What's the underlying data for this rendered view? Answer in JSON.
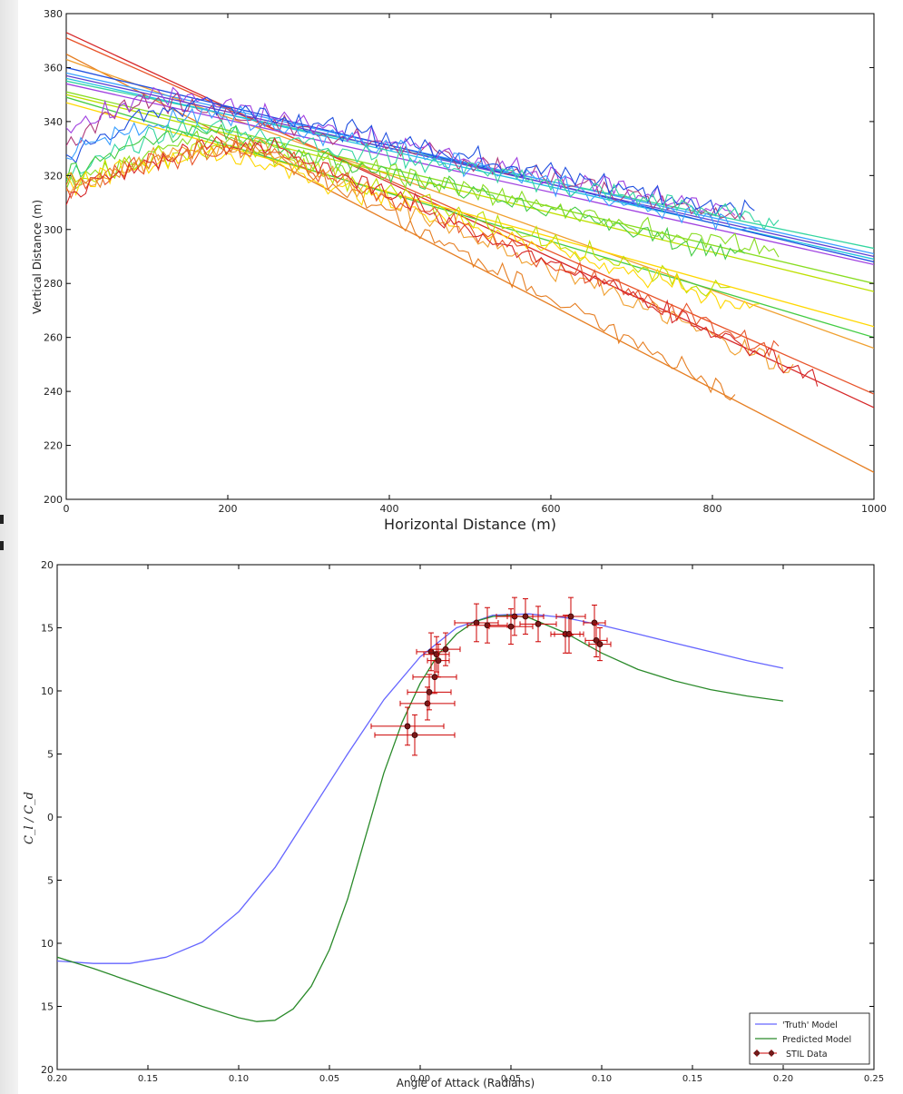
{
  "chart_data": [
    {
      "type": "line",
      "xlabel": "Horizontal Distance (m)",
      "ylabel": "Vertical Distance (m)",
      "xlim": [
        0,
        1000
      ],
      "ylim": [
        200,
        380
      ],
      "xticks": [
        "0",
        "200",
        "400",
        "600",
        "800",
        "1000"
      ],
      "yticks": [
        "200",
        "220",
        "240",
        "260",
        "280",
        "300",
        "320",
        "340",
        "360",
        "380"
      ],
      "fit_lines": [
        {
          "color": "#d62728",
          "y0": 373,
          "y1000": 234
        },
        {
          "color": "#e8542a",
          "y0": 371,
          "y1000": 239
        },
        {
          "color": "#e67e22",
          "y0": 365,
          "y1000": 210
        },
        {
          "color": "#f0a030",
          "y0": 363,
          "y1000": 256
        },
        {
          "color": "#ffd700",
          "y0": 347,
          "y1000": 264
        },
        {
          "color": "#bfe000",
          "y0": 350,
          "y1000": 277
        },
        {
          "color": "#88dd22",
          "y0": 351,
          "y1000": 280
        },
        {
          "color": "#44cc44",
          "y0": 349,
          "y1000": 260
        },
        {
          "color": "#33d6a0",
          "y0": 355,
          "y1000": 293
        },
        {
          "color": "#20c0e0",
          "y0": 356,
          "y1000": 289
        },
        {
          "color": "#3aa0ff",
          "y0": 358,
          "y1000": 291
        },
        {
          "color": "#2050e0",
          "y0": 360,
          "y1000": 288
        },
        {
          "color": "#6040d0",
          "y0": 357,
          "y1000": 290
        },
        {
          "color": "#a040e0",
          "y0": 354,
          "y1000": 287
        }
      ],
      "noisy_tracks": [
        {
          "color": "#b03a7a",
          "start": [
            0,
            331
          ],
          "peak": [
            110,
            348
          ],
          "end": [
            840,
            305
          ]
        },
        {
          "color": "#a040e0",
          "start": [
            0,
            335
          ],
          "peak": [
            120,
            350
          ],
          "end": [
            830,
            306
          ]
        },
        {
          "color": "#2050e0",
          "start": [
            0,
            326
          ],
          "peak": [
            180,
            347
          ],
          "end": [
            850,
            306
          ]
        },
        {
          "color": "#3aa0ff",
          "start": [
            0,
            328
          ],
          "peak": [
            200,
            343
          ],
          "end": [
            860,
            300
          ]
        },
        {
          "color": "#33d6a0",
          "start": [
            0,
            318
          ],
          "peak": [
            180,
            338
          ],
          "end": [
            880,
            303
          ]
        },
        {
          "color": "#44cc44",
          "start": [
            0,
            320
          ],
          "peak": [
            170,
            337
          ],
          "end": [
            840,
            290
          ]
        },
        {
          "color": "#88dd22",
          "start": [
            0,
            315
          ],
          "peak": [
            200,
            333
          ],
          "end": [
            880,
            291
          ]
        },
        {
          "color": "#bfe000",
          "start": [
            0,
            318
          ],
          "peak": [
            220,
            330
          ],
          "end": [
            820,
            276
          ]
        },
        {
          "color": "#ffd700",
          "start": [
            0,
            316
          ],
          "peak": [
            200,
            328
          ],
          "end": [
            860,
            270
          ]
        },
        {
          "color": "#f0a030",
          "start": [
            0,
            314
          ],
          "peak": [
            230,
            332
          ],
          "end": [
            900,
            248
          ]
        },
        {
          "color": "#e8542a",
          "start": [
            0,
            315
          ],
          "peak": [
            240,
            330
          ],
          "end": [
            880,
            255
          ]
        },
        {
          "color": "#d62728",
          "start": [
            0,
            313
          ],
          "peak": [
            250,
            332
          ],
          "end": [
            930,
            246
          ]
        },
        {
          "color": "#e67e22",
          "start": [
            0,
            316
          ],
          "peak": [
            240,
            331
          ],
          "end": [
            830,
            238
          ]
        }
      ]
    },
    {
      "type": "line",
      "xlabel": "Angle of Attack (Radians)",
      "ylabel": "C_l / C_d",
      "xlim": [
        -0.2,
        0.25
      ],
      "ylim": [
        -20,
        20
      ],
      "xticks": [
        "0.20",
        "0.15",
        "0.10",
        "0.05",
        "0.00",
        "0.05",
        "0.10",
        "0.15",
        "0.20",
        "0.25"
      ],
      "yticks": [
        "20",
        "15",
        "10",
        "5",
        "0",
        "5",
        "10",
        "15",
        "20"
      ],
      "series": [
        {
          "name": "'Truth' Model",
          "color": "#6666ff",
          "x": [
            -0.2,
            -0.18,
            -0.16,
            -0.14,
            -0.12,
            -0.1,
            -0.08,
            -0.06,
            -0.04,
            -0.02,
            0,
            0.02,
            0.04,
            0.06,
            0.08,
            0.1,
            0.12,
            0.14,
            0.16,
            0.18,
            0.2
          ],
          "y": [
            -11.4,
            -11.6,
            -11.6,
            -11.1,
            -9.9,
            -7.5,
            -4.0,
            0.5,
            5.0,
            9.3,
            12.7,
            15.0,
            16.0,
            16.1,
            15.8,
            15.2,
            14.5,
            13.8,
            13.1,
            12.4,
            11.8
          ]
        },
        {
          "name": "Predicted Model",
          "color": "#2a8a2a",
          "x": [
            -0.2,
            -0.18,
            -0.16,
            -0.14,
            -0.12,
            -0.1,
            -0.09,
            -0.08,
            -0.07,
            -0.06,
            -0.05,
            -0.04,
            -0.03,
            -0.02,
            -0.01,
            0,
            0.01,
            0.02,
            0.03,
            0.04,
            0.05,
            0.06,
            0.08,
            0.1,
            0.12,
            0.14,
            0.16,
            0.18,
            0.2
          ],
          "y": [
            -11.1,
            -12.0,
            -13.0,
            -14.0,
            -15.0,
            -15.9,
            -16.2,
            -16.1,
            -15.2,
            -13.4,
            -10.5,
            -6.5,
            -1.5,
            3.5,
            7.5,
            10.6,
            12.9,
            14.5,
            15.5,
            15.9,
            16.0,
            15.8,
            14.6,
            13.0,
            11.7,
            10.8,
            10.1,
            9.6,
            9.2
          ]
        }
      ],
      "error_data": {
        "name": "STIL Data",
        "color": "#cc0000",
        "points": [
          {
            "x": -0.007,
            "y": 7.2,
            "xerr": 0.02,
            "yerr": 1.5
          },
          {
            "x": -0.003,
            "y": 6.5,
            "xerr": 0.022,
            "yerr": 1.6
          },
          {
            "x": 0.004,
            "y": 9.0,
            "xerr": 0.015,
            "yerr": 1.3
          },
          {
            "x": 0.005,
            "y": 9.9,
            "xerr": 0.012,
            "yerr": 1.4
          },
          {
            "x": 0.008,
            "y": 11.1,
            "xerr": 0.012,
            "yerr": 1.3
          },
          {
            "x": 0.006,
            "y": 13.1,
            "xerr": 0.008,
            "yerr": 1.5
          },
          {
            "x": 0.009,
            "y": 12.9,
            "xerr": 0.007,
            "yerr": 1.4
          },
          {
            "x": 0.01,
            "y": 12.4,
            "xerr": 0.006,
            "yerr": 1.3
          },
          {
            "x": 0.014,
            "y": 13.3,
            "xerr": 0.008,
            "yerr": 1.3
          },
          {
            "x": 0.031,
            "y": 15.4,
            "xerr": 0.012,
            "yerr": 1.5
          },
          {
            "x": 0.037,
            "y": 15.2,
            "xerr": 0.011,
            "yerr": 1.4
          },
          {
            "x": 0.05,
            "y": 15.1,
            "xerr": 0.012,
            "yerr": 1.4
          },
          {
            "x": 0.052,
            "y": 15.9,
            "xerr": 0.01,
            "yerr": 1.5
          },
          {
            "x": 0.058,
            "y": 15.9,
            "xerr": 0.01,
            "yerr": 1.4
          },
          {
            "x": 0.065,
            "y": 15.3,
            "xerr": 0.01,
            "yerr": 1.4
          },
          {
            "x": 0.08,
            "y": 14.5,
            "xerr": 0.008,
            "yerr": 1.5
          },
          {
            "x": 0.082,
            "y": 14.5,
            "xerr": 0.008,
            "yerr": 1.5
          },
          {
            "x": 0.083,
            "y": 15.9,
            "xerr": 0.008,
            "yerr": 1.5
          },
          {
            "x": 0.096,
            "y": 15.4,
            "xerr": 0.006,
            "yerr": 1.4
          },
          {
            "x": 0.097,
            "y": 14.0,
            "xerr": 0.006,
            "yerr": 1.3
          },
          {
            "x": 0.099,
            "y": 13.7,
            "xerr": 0.006,
            "yerr": 1.3
          }
        ]
      },
      "legend": {
        "placement": "lower-right",
        "entries": [
          "'Truth' Model",
          "Predicted Model",
          "STIL Data"
        ]
      }
    }
  ]
}
